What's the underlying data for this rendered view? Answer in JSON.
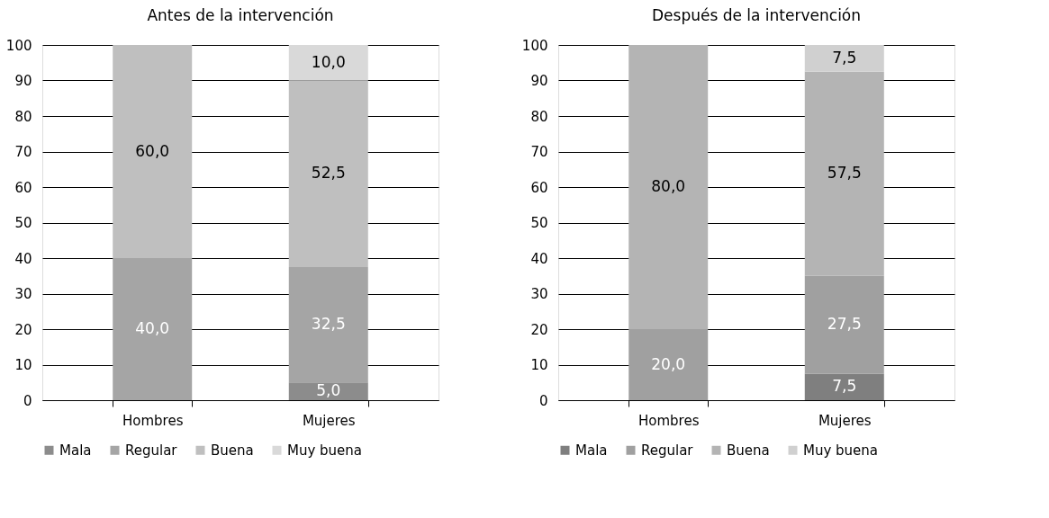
{
  "chart_data": [
    {
      "type": "bar",
      "title": "Antes de la intervención",
      "stacked": true,
      "categories": [
        "Hombres",
        "Mujeres"
      ],
      "ylim": [
        0,
        100
      ],
      "yticks": [
        0,
        10,
        20,
        30,
        40,
        50,
        60,
        70,
        80,
        90,
        100
      ],
      "grid": "y",
      "legend": "bottom",
      "series": [
        {
          "name": "Mala",
          "color": "#8c8c8c",
          "values": [
            null,
            5.0
          ],
          "value_labels": [
            null,
            "5,0"
          ]
        },
        {
          "name": "Regular",
          "color": "#a5a5a5",
          "values": [
            40.0,
            32.5
          ],
          "value_labels": [
            "40,0",
            "32,5"
          ]
        },
        {
          "name": "Buena",
          "color": "#bfbfbf",
          "values": [
            60.0,
            52.5
          ],
          "value_labels": [
            "60,0",
            "52,5"
          ]
        },
        {
          "name": "Muy buena",
          "color": "#d9d9d9",
          "values": [
            null,
            10.0
          ],
          "value_labels": [
            null,
            "10,0"
          ]
        }
      ]
    },
    {
      "type": "bar",
      "title": "Después de la intervención",
      "stacked": true,
      "categories": [
        "Hombres",
        "Mujeres"
      ],
      "ylim": [
        0,
        100
      ],
      "yticks": [
        0,
        10,
        20,
        30,
        40,
        50,
        60,
        70,
        80,
        90,
        100
      ],
      "grid": "y",
      "legend": "bottom",
      "series": [
        {
          "name": "Mala",
          "color": "#7f7f7f",
          "values": [
            null,
            7.5
          ],
          "value_labels": [
            null,
            "7,5"
          ]
        },
        {
          "name": "Regular",
          "color": "#a0a0a0",
          "values": [
            20.0,
            27.5
          ],
          "value_labels": [
            "20,0",
            "27,5"
          ]
        },
        {
          "name": "Buena",
          "color": "#b4b4b4",
          "values": [
            80.0,
            57.5
          ],
          "value_labels": [
            "80,0",
            "57,5"
          ]
        },
        {
          "name": "Muy buena",
          "color": "#d0d0d0",
          "values": [
            null,
            7.5
          ],
          "value_labels": [
            null,
            "7,5"
          ]
        }
      ]
    }
  ]
}
